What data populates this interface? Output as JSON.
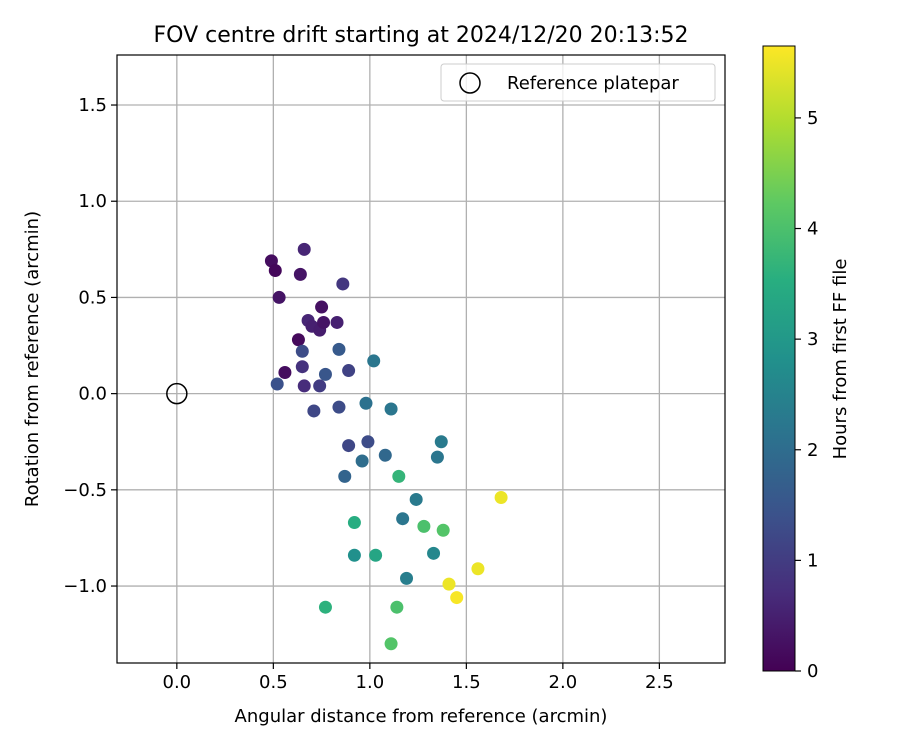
{
  "chart_data": {
    "type": "scatter",
    "title": "FOV centre drift starting at 2024/12/20 20:13:52",
    "xlabel": "Angular distance from reference (arcmin)",
    "ylabel": "Rotation from reference (arcmin)",
    "xlim": [
      -0.31,
      2.84
    ],
    "ylim": [
      -1.4,
      1.76
    ],
    "xticks": [
      0.0,
      0.5,
      1.0,
      1.5,
      2.0,
      2.5
    ],
    "xtick_labels": [
      "0.0",
      "0.5",
      "1.0",
      "1.5",
      "2.0",
      "2.5"
    ],
    "yticks": [
      -1.0,
      -0.5,
      0.0,
      0.5,
      1.0,
      1.5
    ],
    "ytick_labels": [
      "−1.0",
      "−0.5",
      "0.0",
      "0.5",
      "1.0",
      "1.5"
    ],
    "grid": true,
    "legend": {
      "location": "top-right",
      "entries": [
        {
          "label": "Reference platepar",
          "marker": "open-circle"
        }
      ]
    },
    "reference_point": {
      "x": 0.0,
      "y": 0.0
    },
    "colorbar": {
      "label": "Hours from first FF file",
      "colormap": "viridis",
      "range": [
        0,
        5.65
      ],
      "ticks": [
        0,
        1,
        2,
        3,
        4,
        5
      ],
      "tick_labels": [
        "0",
        "1",
        "2",
        "3",
        "4",
        "5"
      ]
    },
    "points": [
      {
        "x": 0.49,
        "y": 0.69,
        "c": 0.2
      },
      {
        "x": 0.51,
        "y": 0.64,
        "c": 0.1
      },
      {
        "x": 0.53,
        "y": 0.5,
        "c": 0.3
      },
      {
        "x": 0.66,
        "y": 0.75,
        "c": 0.6
      },
      {
        "x": 0.64,
        "y": 0.62,
        "c": 0.3
      },
      {
        "x": 0.86,
        "y": 0.57,
        "c": 0.9
      },
      {
        "x": 0.75,
        "y": 0.45,
        "c": 0.25
      },
      {
        "x": 0.68,
        "y": 0.38,
        "c": 0.6
      },
      {
        "x": 0.7,
        "y": 0.35,
        "c": 0.5
      },
      {
        "x": 0.74,
        "y": 0.33,
        "c": 0.45
      },
      {
        "x": 0.76,
        "y": 0.37,
        "c": 0.3
      },
      {
        "x": 0.83,
        "y": 0.37,
        "c": 0.5
      },
      {
        "x": 0.63,
        "y": 0.28,
        "c": 0.15
      },
      {
        "x": 0.84,
        "y": 0.23,
        "c": 1.6
      },
      {
        "x": 0.65,
        "y": 0.22,
        "c": 1.3
      },
      {
        "x": 1.02,
        "y": 0.17,
        "c": 2.2
      },
      {
        "x": 0.56,
        "y": 0.11,
        "c": 0.2
      },
      {
        "x": 0.65,
        "y": 0.14,
        "c": 0.8
      },
      {
        "x": 0.89,
        "y": 0.12,
        "c": 1.1
      },
      {
        "x": 0.77,
        "y": 0.1,
        "c": 1.5
      },
      {
        "x": 0.52,
        "y": 0.05,
        "c": 1.4
      },
      {
        "x": 0.66,
        "y": 0.04,
        "c": 0.7
      },
      {
        "x": 0.74,
        "y": 0.04,
        "c": 1.0
      },
      {
        "x": 0.71,
        "y": -0.09,
        "c": 1.2
      },
      {
        "x": 0.84,
        "y": -0.07,
        "c": 1.3
      },
      {
        "x": 0.98,
        "y": -0.05,
        "c": 2.1
      },
      {
        "x": 1.11,
        "y": -0.08,
        "c": 2.2
      },
      {
        "x": 0.89,
        "y": -0.27,
        "c": 1.2
      },
      {
        "x": 0.99,
        "y": -0.25,
        "c": 1.3
      },
      {
        "x": 0.96,
        "y": -0.35,
        "c": 2.0
      },
      {
        "x": 1.08,
        "y": -0.32,
        "c": 1.9
      },
      {
        "x": 1.37,
        "y": -0.25,
        "c": 2.3
      },
      {
        "x": 1.35,
        "y": -0.33,
        "c": 2.2
      },
      {
        "x": 0.87,
        "y": -0.43,
        "c": 1.8
      },
      {
        "x": 1.15,
        "y": -0.43,
        "c": 3.7
      },
      {
        "x": 1.24,
        "y": -0.55,
        "c": 2.3
      },
      {
        "x": 1.68,
        "y": -0.54,
        "c": 5.5
      },
      {
        "x": 0.92,
        "y": -0.67,
        "c": 3.5
      },
      {
        "x": 1.17,
        "y": -0.65,
        "c": 2.2
      },
      {
        "x": 1.28,
        "y": -0.69,
        "c": 4.0
      },
      {
        "x": 1.38,
        "y": -0.71,
        "c": 4.1
      },
      {
        "x": 0.92,
        "y": -0.84,
        "c": 2.8
      },
      {
        "x": 1.03,
        "y": -0.84,
        "c": 3.3
      },
      {
        "x": 1.33,
        "y": -0.83,
        "c": 2.6
      },
      {
        "x": 1.19,
        "y": -0.96,
        "c": 2.4
      },
      {
        "x": 1.56,
        "y": -0.91,
        "c": 5.5
      },
      {
        "x": 1.41,
        "y": -0.99,
        "c": 5.5
      },
      {
        "x": 1.45,
        "y": -1.06,
        "c": 5.6
      },
      {
        "x": 0.77,
        "y": -1.11,
        "c": 3.6
      },
      {
        "x": 1.14,
        "y": -1.11,
        "c": 4.0
      },
      {
        "x": 1.11,
        "y": -1.3,
        "c": 4.1
      }
    ]
  }
}
